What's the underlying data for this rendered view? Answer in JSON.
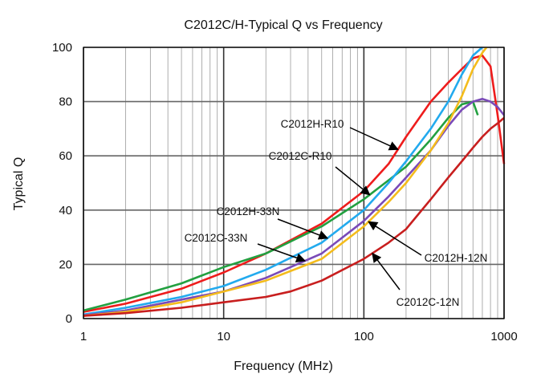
{
  "chart_data": {
    "type": "line",
    "title": "C2012C/H-Typical Q vs Frequency",
    "xlabel": "Frequency (MHz)",
    "ylabel": "Typical Q",
    "x_scale": "log",
    "xlim": [
      1,
      1000
    ],
    "ylim": [
      0,
      100
    ],
    "x_ticks": [
      1,
      10,
      100,
      1000
    ],
    "x_tick_labels": [
      "1",
      "10",
      "100",
      "1000"
    ],
    "y_ticks": [
      0,
      20,
      40,
      60,
      80,
      100
    ],
    "y_tick_labels": [
      "0",
      "20",
      "40",
      "60",
      "80",
      "100"
    ],
    "grid": true,
    "series": [
      {
        "name": "C2012H-R10",
        "color": "#ee1c1c",
        "x": [
          1,
          2,
          5,
          10,
          20,
          50,
          100,
          150,
          200,
          300,
          400,
          500,
          600,
          700,
          800,
          900,
          1000
        ],
        "y": [
          2.5,
          5.5,
          11,
          17,
          24,
          35,
          47,
          57,
          67,
          80,
          87,
          92,
          96,
          97,
          93,
          75,
          57
        ]
      },
      {
        "name": "C2012C-R10",
        "color": "#22a040",
        "x": [
          1,
          2,
          5,
          10,
          20,
          50,
          100,
          150,
          200,
          300,
          400,
          500,
          600,
          650
        ],
        "y": [
          3,
          7,
          13,
          19,
          24,
          34,
          44,
          51,
          56,
          66,
          74,
          79,
          80,
          75
        ]
      },
      {
        "name": "C2012H-33N",
        "color": "#22aaee",
        "x": [
          1,
          2,
          5,
          10,
          20,
          50,
          100,
          150,
          200,
          300,
          400,
          500,
          600,
          700
        ],
        "y": [
          1.5,
          4,
          8,
          12,
          18,
          28,
          40,
          50,
          58,
          70,
          80,
          90,
          97,
          100
        ]
      },
      {
        "name": "C2012C-33N",
        "color": "#7a4ab8",
        "x": [
          1,
          2,
          5,
          10,
          20,
          50,
          100,
          150,
          200,
          300,
          400,
          500,
          600,
          700,
          800,
          900,
          1000
        ],
        "y": [
          1.2,
          3,
          7,
          10,
          15,
          24,
          36,
          45,
          52,
          62,
          71,
          77,
          80,
          81,
          80,
          78,
          75
        ]
      },
      {
        "name": "C2012H-12N",
        "color": "#f4bc1c",
        "x": [
          1,
          2,
          5,
          10,
          20,
          50,
          100,
          150,
          200,
          300,
          400,
          500,
          600,
          700,
          750
        ],
        "y": [
          1,
          2.5,
          6,
          10,
          14,
          22,
          34,
          43,
          50,
          62,
          72,
          82,
          92,
          98,
          100
        ]
      },
      {
        "name": "C2012C-12N",
        "color": "#c81e1e",
        "x": [
          1,
          2,
          5,
          10,
          20,
          30,
          50,
          100,
          150,
          200,
          300,
          400,
          500,
          600,
          700,
          800,
          900,
          1000
        ],
        "y": [
          1,
          2,
          4,
          6,
          8,
          10,
          14,
          22,
          28,
          33,
          44,
          52,
          58,
          63,
          67,
          70,
          72,
          74
        ]
      }
    ],
    "annotations": [
      {
        "text": "C2012H-R10",
        "series": "C2012H-R10"
      },
      {
        "text": "C2012C-R10",
        "series": "C2012C-R10"
      },
      {
        "text": "C2012H-33N",
        "series": "C2012H-33N"
      },
      {
        "text": "C2012C-33N",
        "series": "C2012C-33N"
      },
      {
        "text": "C2012H-12N",
        "series": "C2012H-12N"
      },
      {
        "text": "C2012C-12N",
        "series": "C2012C-12N"
      }
    ]
  }
}
